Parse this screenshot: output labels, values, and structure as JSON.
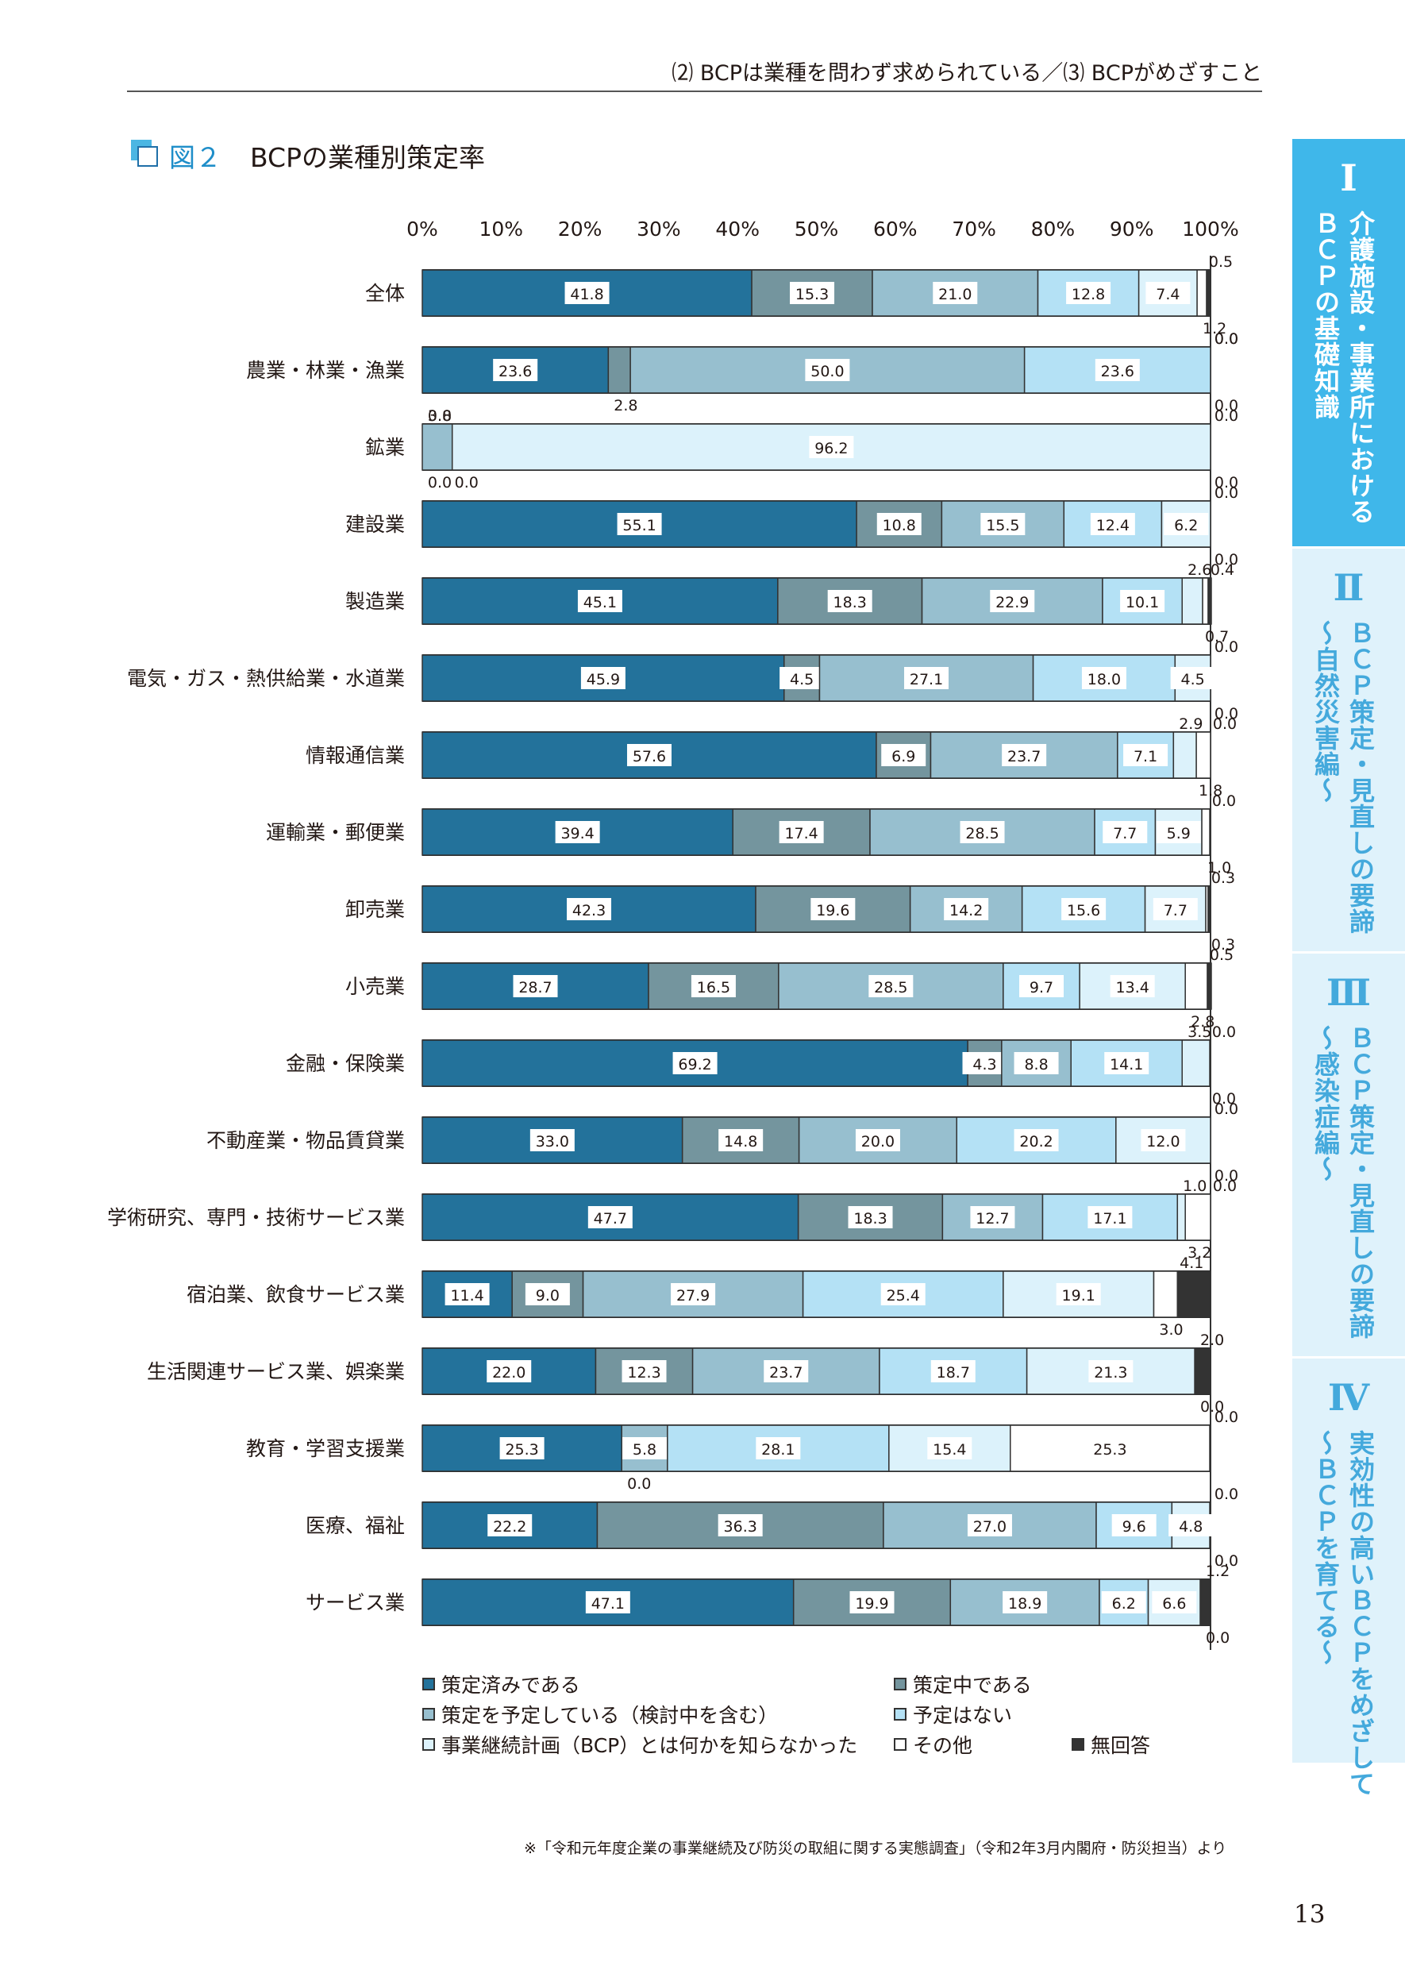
{
  "header": {
    "section_text": "⑵ BCPは業種を問わず求められている／⑶ BCPがめざすこと"
  },
  "figure": {
    "number": "図２",
    "title": "BCPの業種別策定率"
  },
  "chart_data": {
    "type": "bar",
    "orientation": "horizontal",
    "stacked": true,
    "x_ticks": [
      "0%",
      "10%",
      "20%",
      "30%",
      "40%",
      "50%",
      "60%",
      "70%",
      "80%",
      "90%",
      "100%"
    ],
    "xlim": [
      0,
      100
    ],
    "categories": [
      "全体",
      "農業・林業・漁業",
      "鉱業",
      "建設業",
      "製造業",
      "電気・ガス・熱供給業・水道業",
      "情報通信業",
      "運輸業・郵便業",
      "卸売業",
      "小売業",
      "金融・保険業",
      "不動産業・物品賃貸業",
      "学術研究、専門・技術サービス業",
      "宿泊業、飲食サービス業",
      "生活関連サービス業、娯楽業",
      "教育・学習支援業",
      "医療、福祉",
      "サービス業"
    ],
    "series": [
      {
        "name": "策定済みである",
        "color": "#23729b",
        "values": [
          41.8,
          23.6,
          0.0,
          55.1,
          45.1,
          45.9,
          57.6,
          39.4,
          42.3,
          28.7,
          69.2,
          33.0,
          47.7,
          11.4,
          22.0,
          25.3,
          22.2,
          47.1
        ]
      },
      {
        "name": "策定中である",
        "color": "#74959e",
        "values": [
          15.3,
          2.8,
          0.0,
          10.8,
          18.3,
          4.5,
          6.9,
          17.4,
          19.6,
          16.5,
          4.3,
          14.8,
          18.3,
          9.0,
          12.3,
          0.0,
          36.3,
          19.9
        ]
      },
      {
        "name": "策定を予定している（検討中を含む）",
        "color": "#97bfcf",
        "values": [
          21.0,
          50.0,
          3.8,
          15.5,
          22.9,
          27.1,
          23.7,
          28.5,
          14.2,
          28.5,
          8.8,
          20.0,
          12.7,
          27.9,
          23.7,
          5.8,
          27.0,
          18.9
        ]
      },
      {
        "name": "予定はない",
        "color": "#b4e1f5",
        "values": [
          12.8,
          23.6,
          0.0,
          12.4,
          10.1,
          18.0,
          7.1,
          7.7,
          15.6,
          9.7,
          14.1,
          20.2,
          17.1,
          25.4,
          18.7,
          28.1,
          9.6,
          6.2
        ]
      },
      {
        "name": "事業継続計画（BCP）とは何かを知らなかった",
        "color": "#dcf2fb",
        "values": [
          7.4,
          0.0,
          96.2,
          6.2,
          2.6,
          4.5,
          2.9,
          5.9,
          7.7,
          13.4,
          3.5,
          12.0,
          1.0,
          19.1,
          21.3,
          15.4,
          4.8,
          6.6
        ]
      },
      {
        "name": "その他",
        "color": "#ffffff",
        "values": [
          1.2,
          0.0,
          0.0,
          0.0,
          0.7,
          0.0,
          1.8,
          1.0,
          0.3,
          2.8,
          0.0,
          0.0,
          3.2,
          3.0,
          0.0,
          25.3,
          0.0,
          0.0
        ]
      },
      {
        "name": "無回答",
        "color": "#333333",
        "values": [
          0.5,
          0.0,
          0.0,
          0.0,
          0.4,
          0.0,
          0.0,
          0.0,
          0.3,
          0.5,
          0.0,
          0.0,
          0.0,
          4.1,
          2.0,
          0.0,
          0.0,
          1.2
        ]
      }
    ],
    "legend_placement": "bottom",
    "grid": false
  },
  "source_note": "※「令和元年度企業の事業継続及び防災の取組に関する実態調査」（令和2年3月内閣府・防災担当）より",
  "page_number": "13",
  "side_tabs": [
    {
      "num": "Ⅰ",
      "text": "介護施設・事業所における\nＢＣＰの基礎知識",
      "active": true
    },
    {
      "num": "Ⅱ",
      "text": "ＢＣＰ策定・見直しの要諦\n〜自然災害編〜",
      "active": false
    },
    {
      "num": "Ⅲ",
      "text": "ＢＣＰ策定・見直しの要諦\n〜感染症編〜",
      "active": false
    },
    {
      "num": "Ⅳ",
      "text": "実効性の高いＢＣＰをめざして\n〜ＢＣＰを育てる〜",
      "active": false
    }
  ]
}
